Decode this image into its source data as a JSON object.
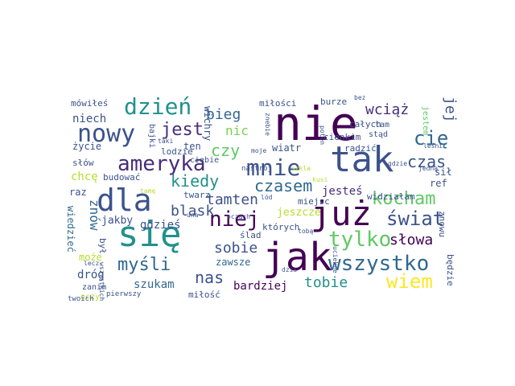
{
  "words": [
    {
      "text": "nie",
      "color": "#440154"
    },
    {
      "text": "jak",
      "color": "#440154"
    },
    {
      "text": "tak",
      "color": "#3b528b"
    },
    {
      "text": "się",
      "color": "#21918c"
    },
    {
      "text": "już",
      "color": "#440154"
    },
    {
      "text": "dla",
      "color": "#3b528b"
    },
    {
      "text": "nowy",
      "color": "#3b528b"
    },
    {
      "text": "dzień",
      "color": "#21918c"
    },
    {
      "text": "mnie",
      "color": "#3b528b"
    },
    {
      "text": "ameryka",
      "color": "#472d7b"
    },
    {
      "text": "wszystko",
      "color": "#31688e"
    },
    {
      "text": "niej",
      "color": "#440154"
    },
    {
      "text": "tylko",
      "color": "#5ec962"
    },
    {
      "text": "świat",
      "color": "#3b528b"
    },
    {
      "text": "kocham",
      "color": "#5ec962"
    },
    {
      "text": "wiem",
      "color": "#fde725"
    },
    {
      "text": "czasem",
      "color": "#31688e"
    },
    {
      "text": "cię",
      "color": "#31688e"
    },
    {
      "text": "jest",
      "color": "#472d7b"
    },
    {
      "text": "myśli",
      "color": "#31688e"
    },
    {
      "text": "nas",
      "color": "#3b528b"
    },
    {
      "text": "czas",
      "color": "#3b528b"
    },
    {
      "text": "słowa",
      "color": "#440154"
    },
    {
      "text": "kiedy",
      "color": "#21918c"
    },
    {
      "text": "tamten",
      "color": "#3b528b"
    },
    {
      "text": "blask",
      "color": "#3b528b"
    },
    {
      "text": "wciąż",
      "color": "#472d7b"
    },
    {
      "text": "bieg",
      "color": "#31688e"
    },
    {
      "text": "czy",
      "color": "#5ec962"
    },
    {
      "text": "nic",
      "color": "#7ad151"
    },
    {
      "text": "tobie",
      "color": "#21918c"
    },
    {
      "text": "sobie",
      "color": "#3b528b"
    },
    {
      "text": "znów",
      "color": "#31688e"
    },
    {
      "text": "jej",
      "color": "#3b528b"
    },
    {
      "text": "jesteś",
      "color": "#472d7b"
    },
    {
      "text": "bardziej",
      "color": "#440154"
    },
    {
      "text": "szukam",
      "color": "#31688e"
    },
    {
      "text": "dróg",
      "color": "#3b528b"
    },
    {
      "text": "gdzieś",
      "color": "#3b528b"
    },
    {
      "text": "jakby",
      "color": "#3b528b"
    },
    {
      "text": "jeszcze",
      "color": "#b5de2b"
    },
    {
      "text": "niech",
      "color": "#3b528b"
    },
    {
      "text": "chcę",
      "color": "#b5de2b"
    },
    {
      "text": "budować",
      "color": "#3b528b"
    },
    {
      "text": "raz",
      "color": "#3b528b"
    },
    {
      "text": "twarz",
      "color": "#3b528b"
    },
    {
      "text": "zawsze",
      "color": "#31688e"
    },
    {
      "text": "wiatr",
      "color": "#3b528b"
    },
    {
      "text": "ten",
      "color": "#3b528b"
    },
    {
      "text": "ref",
      "color": "#3b528b"
    },
    {
      "text": "sił",
      "color": "#3b528b"
    },
    {
      "text": "widziałam",
      "color": "#3b528b"
    },
    {
      "text": "mówiłeś",
      "color": "#3b528b"
    },
    {
      "text": "życie",
      "color": "#3b528b"
    },
    {
      "text": "słów",
      "color": "#3b528b"
    },
    {
      "text": "miłości",
      "color": "#3b528b"
    },
    {
      "text": "burze",
      "color": "#3b528b"
    },
    {
      "text": "całych",
      "color": "#3b528b"
    },
    {
      "text": "tam",
      "color": "#3b528b"
    },
    {
      "text": "radzić",
      "color": "#3b528b"
    },
    {
      "text": "cienkim",
      "color": "#3b528b"
    },
    {
      "text": "lodzie",
      "color": "#3b528b"
    },
    {
      "text": "ciebie",
      "color": "#3b528b"
    },
    {
      "text": "wichry",
      "color": "#3b528b"
    },
    {
      "text": "wiedzieć",
      "color": "#31688e"
    },
    {
      "text": "może",
      "color": "#b5de2b"
    },
    {
      "text": "był",
      "color": "#3b528b"
    },
    {
      "text": "miłość",
      "color": "#3b528b"
    },
    {
      "text": "ślad",
      "color": "#3b528b"
    },
    {
      "text": "których",
      "color": "#3b528b"
    },
    {
      "text": "miejsc",
      "color": "#3b528b"
    },
    {
      "text": "znowu",
      "color": "#3b528b"
    },
    {
      "text": "będzie",
      "color": "#3b528b"
    },
    {
      "text": "bajki",
      "color": "#3b528b"
    },
    {
      "text": "jestem",
      "color": "#5ec962"
    },
    {
      "text": "stąd",
      "color": "#3b528b"
    },
    {
      "text": "zanim",
      "color": "#3b528b"
    },
    {
      "text": "oczy",
      "color": "#b5de2b"
    },
    {
      "text": "twoich",
      "color": "#3b528b"
    },
    {
      "text": "pierwszy",
      "color": "#3b528b"
    },
    {
      "text": "nastrój",
      "color": "#3b528b"
    },
    {
      "text": "uciekne",
      "color": "#3b528b"
    },
    {
      "text": "szkla",
      "color": "#b5de2b"
    },
    {
      "text": "lecz",
      "color": "#3b528b"
    },
    {
      "text": "tobą",
      "color": "#3b528b"
    },
    {
      "text": "ocząch",
      "color": "#3b528b"
    },
    {
      "text": "dzis",
      "color": "#3b528b"
    },
    {
      "text": "gdzie",
      "color": "#3b528b"
    },
    {
      "text": "jedną",
      "color": "#3b528b"
    },
    {
      "text": "lód",
      "color": "#3b528b"
    },
    {
      "text": "bez",
      "color": "#3b528b"
    },
    {
      "text": "poten",
      "color": "#3b528b"
    },
    {
      "text": "leśni",
      "color": "#3b528b"
    },
    {
      "text": "taki",
      "color": "#3b528b"
    },
    {
      "text": "znebie",
      "color": "#3b528b"
    },
    {
      "text": "moje",
      "color": "#3b528b"
    },
    {
      "text": "kusi",
      "color": "#b5de2b"
    },
    {
      "text": "una",
      "color": "#3b528b"
    },
    {
      "text": "tamę",
      "color": "#b5de2b"
    },
    {
      "text": "wszystkich",
      "color": "#3b528b"
    }
  ]
}
